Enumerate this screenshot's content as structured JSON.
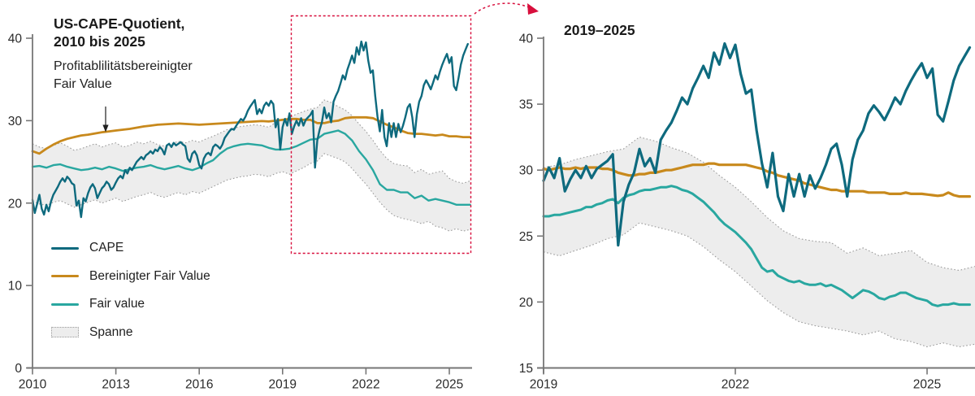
{
  "colors": {
    "cape": "#0e6a7e",
    "adjusted_fair_value": "#c8891c",
    "fair_value": "#29a7a0",
    "band_fill": "#ededed",
    "band_edge": "#9b9b9b",
    "axis": "#767676",
    "text": "#1f1f1f",
    "highlight_red": "#d80f3d",
    "background": "#ffffff"
  },
  "legend": {
    "items": [
      {
        "label": "CAPE",
        "color": "#0e6a7e",
        "type": "line"
      },
      {
        "label": "Bereinigter Fair Value",
        "color": "#c8891c",
        "type": "line"
      },
      {
        "label": "Fair value",
        "color": "#29a7a0",
        "type": "line"
      },
      {
        "label": "Spanne",
        "color": "#ededed",
        "type": "band"
      }
    ]
  },
  "chart_data": [
    {
      "type": "line",
      "panel": "left",
      "title_line1": "US-CAPE-Quotient,",
      "title_line2": "2010 bis 2025",
      "annotation": {
        "line1": "Profitablilitätsbereinigter",
        "line2": "Fair Value"
      },
      "x_axis": {
        "ticks": [
          2010,
          2013,
          2016,
          2019,
          2022,
          2025
        ],
        "min": 2010,
        "max": 2025.8
      },
      "y_axis": {
        "ticks": [
          0,
          10,
          20,
          30,
          40
        ],
        "min": 0,
        "max": 40
      },
      "band": {
        "name": "Spanne",
        "x_start": 2010,
        "x_step": 0.25,
        "upper": [
          27.2,
          26.8,
          26.6,
          27.0,
          27.3,
          26.9,
          26.4,
          26.6,
          26.9,
          27.2,
          26.8,
          27.1,
          27.3,
          26.8,
          27.0,
          27.4,
          27.2,
          27.5,
          27.1,
          26.9,
          27.2,
          27.5,
          27.3,
          27.6,
          27.4,
          27.8,
          28.1,
          28.5,
          28.9,
          29.1,
          29.3,
          29.4,
          29.5,
          29.4,
          29.2,
          29.8,
          30.2,
          30.4,
          30.8,
          31.1,
          31.4,
          31.6,
          32.5,
          32.2,
          31.7,
          31.3,
          30.6,
          29.6,
          28.7,
          27.6,
          26.4,
          25.4,
          24.8,
          24.6,
          24.5,
          23.7,
          24.1,
          23.5,
          23.7,
          23.9,
          23.0,
          22.6,
          22.4,
          22.7
        ],
        "lower": [
          20.2,
          19.9,
          19.7,
          20.1,
          20.3,
          19.9,
          19.5,
          19.8,
          20.1,
          20.4,
          20.0,
          20.3,
          20.6,
          20.2,
          20.5,
          20.8,
          21.0,
          21.3,
          20.9,
          20.7,
          21.0,
          21.3,
          21.0,
          21.4,
          21.2,
          21.6,
          22.0,
          22.4,
          22.8,
          23.0,
          23.2,
          23.3,
          23.5,
          23.4,
          23.2,
          23.6,
          23.8,
          23.5,
          23.9,
          24.3,
          24.8,
          25.1,
          26.0,
          25.7,
          25.4,
          25.0,
          24.2,
          23.2,
          22.3,
          21.2,
          20.1,
          19.2,
          18.5,
          18.2,
          18.0,
          17.8,
          17.5,
          17.8,
          17.2,
          17.0,
          16.6,
          16.9,
          16.6,
          16.8
        ]
      },
      "series": [
        {
          "name": "Fair value",
          "color": "#29a7a0",
          "width": 2.4,
          "x_start": 2010,
          "x_step": 0.25,
          "values": [
            24.4,
            24.5,
            24.3,
            24.6,
            24.7,
            24.4,
            24.2,
            24.0,
            24.1,
            24.3,
            24.1,
            24.4,
            24.2,
            23.9,
            24.1,
            24.3,
            24.4,
            24.6,
            24.3,
            24.1,
            24.3,
            24.5,
            24.2,
            24.0,
            24.3,
            24.8,
            25.2,
            26.0,
            26.6,
            26.9,
            27.1,
            27.2,
            27.1,
            27.0,
            26.7,
            26.5,
            26.5,
            26.6,
            26.9,
            27.3,
            27.7,
            27.8,
            28.4,
            28.6,
            28.8,
            28.4,
            27.6,
            26.3,
            25.3,
            24.0,
            22.3,
            21.6,
            21.6,
            21.3,
            21.3,
            20.6,
            20.9,
            20.3,
            20.5,
            20.3,
            20.1,
            19.8,
            19.8,
            19.8
          ]
        },
        {
          "name": "Bereinigter Fair Value",
          "color": "#c8891c",
          "width": 2.8,
          "x_start": 2010,
          "x_step": 0.25,
          "values": [
            26.3,
            26.0,
            26.6,
            27.1,
            27.5,
            27.8,
            28.0,
            28.2,
            28.3,
            28.45,
            28.6,
            28.7,
            28.8,
            28.9,
            29.0,
            29.15,
            29.3,
            29.4,
            29.5,
            29.55,
            29.6,
            29.65,
            29.6,
            29.55,
            29.5,
            29.55,
            29.6,
            29.65,
            29.7,
            29.75,
            29.8,
            29.85,
            29.9,
            29.95,
            29.9,
            30.0,
            30.1,
            30.2,
            30.2,
            30.1,
            30.1,
            29.7,
            29.7,
            29.9,
            30.0,
            30.3,
            30.4,
            30.4,
            30.4,
            30.3,
            29.9,
            29.5,
            29.2,
            28.8,
            28.5,
            28.4,
            28.4,
            28.3,
            28.2,
            28.3,
            28.1,
            28.1,
            28.0,
            28.0
          ]
        },
        {
          "name": "CAPE",
          "color": "#0e6a7e",
          "width": 2.4,
          "x_start": 2010,
          "x_step": 0.0833333,
          "values": [
            20.4,
            18.8,
            19.9,
            21.0,
            19.3,
            18.6,
            19.8,
            19.0,
            20.2,
            21.0,
            21.5,
            22.0,
            22.6,
            23.0,
            22.6,
            23.2,
            22.9,
            22.4,
            22.2,
            19.7,
            20.3,
            18.3,
            20.6,
            20.2,
            21.2,
            21.9,
            22.3,
            21.8,
            20.6,
            21.2,
            21.8,
            22.1,
            22.6,
            22.3,
            21.6,
            21.9,
            22.5,
            23.0,
            23.3,
            23.0,
            24.0,
            23.6,
            24.3,
            24.0,
            24.5,
            25.0,
            25.3,
            25.6,
            25.3,
            25.8,
            26.0,
            26.3,
            26.0,
            26.5,
            26.3,
            26.8,
            26.5,
            25.9,
            27.0,
            27.2,
            26.8,
            27.3,
            27.0,
            27.2,
            27.4,
            27.1,
            26.9,
            25.4,
            25.0,
            26.0,
            26.3,
            25.8,
            24.6,
            24.2,
            25.4,
            25.9,
            26.1,
            25.8,
            26.8,
            27.1,
            26.9,
            26.6,
            27.1,
            27.9,
            28.3,
            28.7,
            29.0,
            28.9,
            29.4,
            29.8,
            30.2,
            30.0,
            30.5,
            31.2,
            31.7,
            32.1,
            32.5,
            30.8,
            31.4,
            30.9,
            31.8,
            32.2,
            31.8,
            32.4,
            32.0,
            29.2,
            30.2,
            26.5,
            29.2,
            30.2,
            29.4,
            30.9,
            28.4,
            29.3,
            30.0,
            29.4,
            30.3,
            29.4,
            30.1,
            30.4,
            30.7,
            31.2,
            24.3,
            27.6,
            28.9,
            29.8,
            31.6,
            30.3,
            30.9,
            29.8,
            32.3,
            33.0,
            33.6,
            34.5,
            35.5,
            35.0,
            36.2,
            37.0,
            37.9,
            37.0,
            38.9,
            38.0,
            39.6,
            38.5,
            39.5,
            37.3,
            35.8,
            36.1,
            33.0,
            30.5,
            28.7,
            31.3,
            28.0,
            26.9,
            29.7,
            28.0,
            29.7,
            28.0,
            29.6,
            28.6,
            29.4,
            30.4,
            31.6,
            32.0,
            30.4,
            28.0,
            30.8,
            32.3,
            33.0,
            34.3,
            34.9,
            34.4,
            33.8,
            34.6,
            35.5,
            35.0,
            36.0,
            36.8,
            37.5,
            38.1,
            37.0,
            37.7,
            34.2,
            33.7,
            35.2,
            36.8,
            37.9,
            38.6,
            39.3
          ]
        }
      ]
    },
    {
      "type": "line",
      "panel": "right",
      "title": "2019–2025",
      "x_axis": {
        "ticks": [
          2019,
          2022,
          2025
        ],
        "min": 2019,
        "max": 2025.75
      },
      "y_axis": {
        "ticks": [
          15,
          20,
          25,
          30,
          35,
          40
        ],
        "min": 15,
        "max": 40
      },
      "band": {
        "name": "Spanne",
        "x_start": 2019,
        "x_step": 0.25,
        "upper": [
          30.2,
          30.4,
          30.8,
          31.1,
          31.4,
          31.6,
          32.5,
          32.2,
          31.7,
          31.3,
          30.6,
          29.6,
          28.7,
          27.6,
          26.4,
          25.4,
          24.8,
          24.6,
          24.5,
          23.7,
          24.1,
          23.5,
          23.7,
          23.9,
          23.0,
          22.6,
          22.4,
          22.7
        ],
        "lower": [
          23.8,
          23.5,
          23.9,
          24.3,
          24.8,
          25.1,
          26.0,
          25.7,
          25.4,
          25.0,
          24.2,
          23.2,
          22.3,
          21.2,
          20.1,
          19.2,
          18.5,
          18.2,
          18.0,
          17.8,
          17.5,
          17.8,
          17.2,
          17.0,
          16.6,
          16.9,
          16.6,
          16.8
        ]
      },
      "series": [
        {
          "name": "Fair value",
          "color": "#29a7a0",
          "width": 3.0,
          "x_start": 2019,
          "x_step": 0.0833333,
          "values": [
            26.5,
            26.5,
            26.6,
            26.6,
            26.7,
            26.8,
            26.9,
            27.0,
            27.2,
            27.2,
            27.4,
            27.5,
            27.7,
            27.8,
            27.5,
            27.9,
            28.1,
            28.2,
            28.4,
            28.5,
            28.5,
            28.6,
            28.7,
            28.7,
            28.8,
            28.7,
            28.5,
            28.4,
            28.2,
            27.9,
            27.6,
            27.2,
            26.8,
            26.3,
            25.9,
            25.6,
            25.3,
            24.9,
            24.5,
            24.0,
            23.3,
            22.6,
            22.3,
            22.4,
            22.0,
            21.8,
            21.6,
            21.5,
            21.6,
            21.4,
            21.3,
            21.3,
            21.4,
            21.2,
            21.3,
            21.1,
            20.9,
            20.6,
            20.3,
            20.6,
            20.9,
            20.8,
            20.6,
            20.3,
            20.2,
            20.4,
            20.5,
            20.7,
            20.7,
            20.5,
            20.3,
            20.2,
            20.1,
            19.8,
            19.7,
            19.8,
            19.8,
            19.9,
            19.8,
            19.8,
            19.8
          ]
        },
        {
          "name": "Bereinigter Fair Value",
          "color": "#c8891c",
          "width": 3.2,
          "x_start": 2019,
          "x_step": 0.0833333,
          "values": [
            30.1,
            30.0,
            30.1,
            30.2,
            30.1,
            30.1,
            30.2,
            30.1,
            30.2,
            30.2,
            30.2,
            30.1,
            30.1,
            30.0,
            29.8,
            29.7,
            29.6,
            29.6,
            29.7,
            29.7,
            29.8,
            29.8,
            29.9,
            30.0,
            30.0,
            30.1,
            30.2,
            30.3,
            30.4,
            30.4,
            30.4,
            30.5,
            30.5,
            30.4,
            30.4,
            30.4,
            30.4,
            30.4,
            30.4,
            30.3,
            30.2,
            30.1,
            29.9,
            29.8,
            29.6,
            29.5,
            29.4,
            29.3,
            29.2,
            29.0,
            28.9,
            28.8,
            28.7,
            28.6,
            28.5,
            28.5,
            28.4,
            28.4,
            28.4,
            28.4,
            28.4,
            28.3,
            28.3,
            28.3,
            28.3,
            28.2,
            28.2,
            28.2,
            28.3,
            28.2,
            28.2,
            28.2,
            28.15,
            28.1,
            28.05,
            28.1,
            28.3,
            28.1,
            28.0,
            28.0,
            28.0
          ]
        },
        {
          "name": "CAPE",
          "color": "#0e6a7e",
          "width": 3.2,
          "x_start": 2019,
          "x_step": 0.0833333,
          "values": [
            29.2,
            30.2,
            29.4,
            30.9,
            28.4,
            29.3,
            30.0,
            29.4,
            30.3,
            29.4,
            30.1,
            30.4,
            30.7,
            31.2,
            24.3,
            27.6,
            28.9,
            29.8,
            31.6,
            30.3,
            30.9,
            29.8,
            32.3,
            33.0,
            33.6,
            34.5,
            35.5,
            35.0,
            36.2,
            37.0,
            37.9,
            37.0,
            38.9,
            38.0,
            39.6,
            38.5,
            39.5,
            37.3,
            35.8,
            36.1,
            33.0,
            30.5,
            28.7,
            31.3,
            28.0,
            26.9,
            29.7,
            28.0,
            29.7,
            28.0,
            29.6,
            28.6,
            29.4,
            30.4,
            31.6,
            32.0,
            30.4,
            28.0,
            30.8,
            32.3,
            33.0,
            34.3,
            34.9,
            34.4,
            33.8,
            34.6,
            35.5,
            35.0,
            36.0,
            36.8,
            37.5,
            38.1,
            37.0,
            37.7,
            34.2,
            33.7,
            35.2,
            36.8,
            37.9,
            38.6,
            39.3
          ]
        }
      ]
    }
  ]
}
